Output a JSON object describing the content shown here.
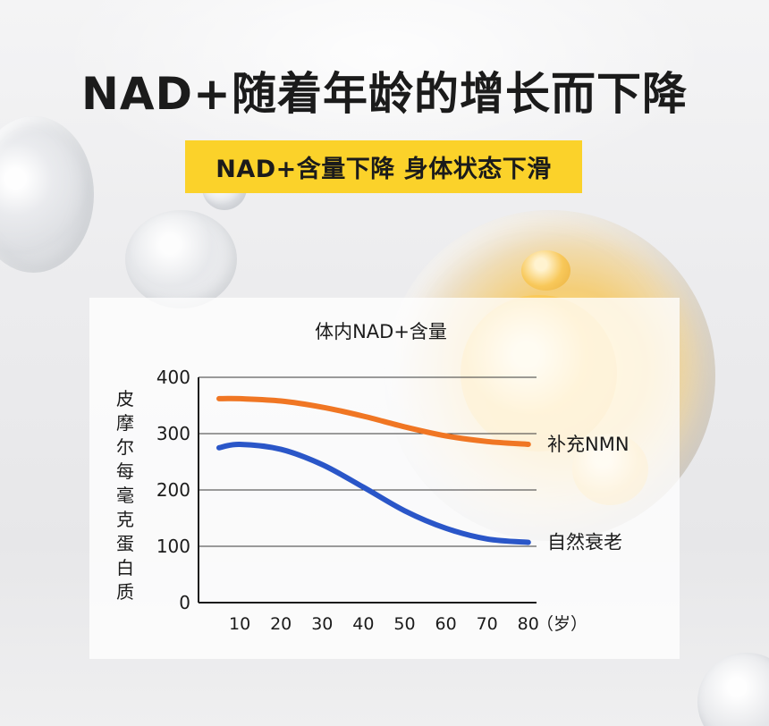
{
  "headline": "NAD+随着年龄的增长而下降",
  "banner": "NAD+含量下降 身体状态下滑",
  "colors": {
    "accent_yellow": "#fbd22a",
    "supplement_series": "#f07623",
    "natural_series": "#2a56c8",
    "text": "#1b1b1b"
  },
  "chart_data": {
    "type": "line",
    "title": "体内NAD+含量",
    "ylabel": "皮摩尔每毫克蛋白质",
    "x_unit_label": "（岁）",
    "x": [
      5,
      10,
      20,
      30,
      40,
      50,
      60,
      70,
      80
    ],
    "xticks": [
      10,
      20,
      30,
      40,
      50,
      60,
      70,
      80
    ],
    "yticks": [
      0,
      100,
      200,
      300,
      400
    ],
    "xlim": [
      0,
      82
    ],
    "ylim": [
      0,
      400
    ],
    "grid": true,
    "series": [
      {
        "name": "补充NMN",
        "color": "#f07623",
        "values": [
          362,
          362,
          358,
          347,
          331,
          312,
          296,
          286,
          281
        ]
      },
      {
        "name": "自然衰老",
        "color": "#2a56c8",
        "values": [
          275,
          281,
          272,
          245,
          205,
          163,
          132,
          113,
          107
        ]
      }
    ]
  }
}
